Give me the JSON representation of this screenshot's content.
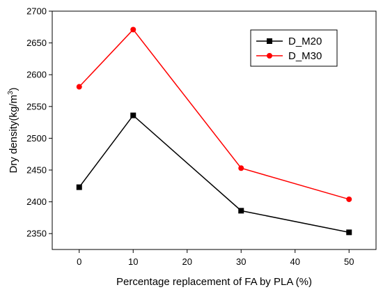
{
  "chart_data": {
    "type": "line",
    "xlabel": "Percentage replacement of FA by PLA (%)",
    "ylabel_main": "Dry density(kg/m",
    "ylabel_sup": "3",
    "ylabel_end": ")",
    "xlim": [
      -5,
      55
    ],
    "ylim": [
      2325,
      2700
    ],
    "xticks": [
      0,
      10,
      20,
      30,
      40,
      50
    ],
    "yticks": [
      2350,
      2400,
      2450,
      2500,
      2550,
      2600,
      2650,
      2700
    ],
    "x": [
      0,
      10,
      30,
      50
    ],
    "series": [
      {
        "name": "D_M20",
        "color": "#000000",
        "marker": "square",
        "values": [
          2423,
          2536,
          2386,
          2352
        ]
      },
      {
        "name": "D_M30",
        "color": "#ff0000",
        "marker": "circle",
        "values": [
          2581,
          2671,
          2453,
          2404
        ]
      }
    ],
    "legend_position": "top-right",
    "grid": false
  }
}
